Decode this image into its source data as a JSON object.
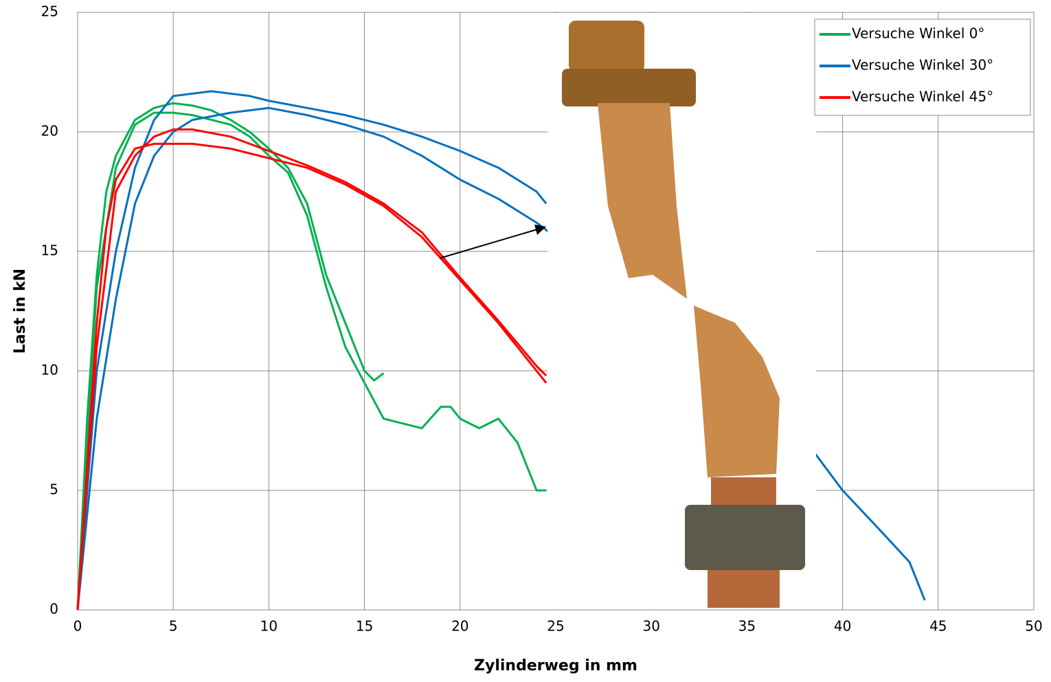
{
  "chart_data": {
    "type": "line",
    "x_label": "Zylinderweg in mm",
    "y_label": "Last in kN",
    "xlim": [
      0,
      50
    ],
    "xticks": [
      0,
      5,
      10,
      15,
      20,
      25,
      30,
      35,
      40,
      45,
      50
    ],
    "ylim": [
      0,
      25
    ],
    "yticks": [
      0,
      5,
      10,
      15,
      20,
      25
    ],
    "grid": true,
    "legend": "upper right",
    "series": [
      {
        "name": "Versuche Winkel 0°",
        "color": "#00b050",
        "runs": [
          {
            "x": [
              0,
              0.5,
              1,
              1.5,
              2,
              3,
              4,
              5,
              6,
              7,
              8,
              9,
              10,
              11,
              12,
              13,
              14,
              15,
              15.5,
              16
            ],
            "values": [
              0,
              8,
              14,
              17.5,
              19,
              20.5,
              21,
              21.2,
              21.1,
              20.9,
              20.5,
              20,
              19.3,
              18.5,
              17,
              14,
              12,
              10,
              9.6,
              9.9
            ]
          },
          {
            "x": [
              0,
              0.5,
              1,
              2,
              3,
              4,
              5,
              6,
              7,
              8,
              9,
              10,
              11,
              12,
              13,
              14,
              15,
              16,
              17,
              18,
              19,
              19.5,
              20,
              21,
              22,
              23,
              24,
              24.5
            ],
            "values": [
              0,
              7,
              13.5,
              18.5,
              20.3,
              20.8,
              20.8,
              20.7,
              20.5,
              20.3,
              19.8,
              19,
              18.3,
              16.5,
              13.5,
              11,
              9.5,
              8,
              7.8,
              7.6,
              8.5,
              8.5,
              8,
              7.6,
              8,
              7,
              5,
              5
            ]
          }
        ]
      },
      {
        "name": "Versuche Winkel 30°",
        "color": "#0070c0",
        "runs": [
          {
            "x": [
              0,
              0.5,
              1,
              2,
              3,
              4,
              5,
              6,
              7,
              8,
              9,
              10,
              12,
              14,
              16,
              18,
              20,
              22,
              24,
              24.5
            ],
            "values": [
              0,
              5,
              10,
              15,
              18.5,
              20.5,
              21.5,
              21.6,
              21.7,
              21.6,
              21.5,
              21.3,
              21,
              20.7,
              20.3,
              19.8,
              19.2,
              18.5,
              17.5,
              17
            ]
          },
          {
            "x": [
              0,
              1,
              2,
              3,
              4,
              5,
              6,
              8,
              10,
              12,
              14,
              16,
              18,
              20,
              22,
              24,
              24.5,
              27,
              30,
              33,
              36,
              38.6,
              40,
              42,
              43.5,
              44.3
            ],
            "values": [
              0,
              8,
              13,
              17,
              19,
              20,
              20.5,
              20.8,
              21,
              20.7,
              20.3,
              19.8,
              19,
              18,
              17.2,
              16.2,
              15.9,
              14.2,
              12.2,
              10.2,
              8.2,
              6.5,
              5,
              3.3,
              2,
              0.4
            ]
          }
        ]
      },
      {
        "name": "Versuche Winkel 45°",
        "color": "#ff0000",
        "runs": [
          {
            "x": [
              0,
              0.5,
              1,
              1.5,
              2,
              3,
              4,
              5,
              6,
              7,
              8,
              10,
              12,
              14,
              16,
              18,
              20,
              22,
              24,
              24.5
            ],
            "values": [
              0,
              6,
              12,
              16,
              18,
              19.3,
              19.5,
              19.5,
              19.5,
              19.4,
              19.3,
              18.9,
              18.5,
              17.8,
              16.9,
              15.6,
              13.8,
              12,
              10,
              9.5
            ]
          },
          {
            "x": [
              0,
              1,
              2,
              3,
              4,
              5,
              6,
              8,
              10,
              12,
              14,
              16,
              18,
              20,
              22,
              24,
              24.5
            ],
            "values": [
              0,
              11,
              17.5,
              19,
              19.8,
              20.1,
              20.1,
              19.8,
              19.2,
              18.6,
              17.9,
              17,
              15.8,
              13.9,
              12.1,
              10.2,
              9.8
            ]
          }
        ]
      }
    ]
  }
}
